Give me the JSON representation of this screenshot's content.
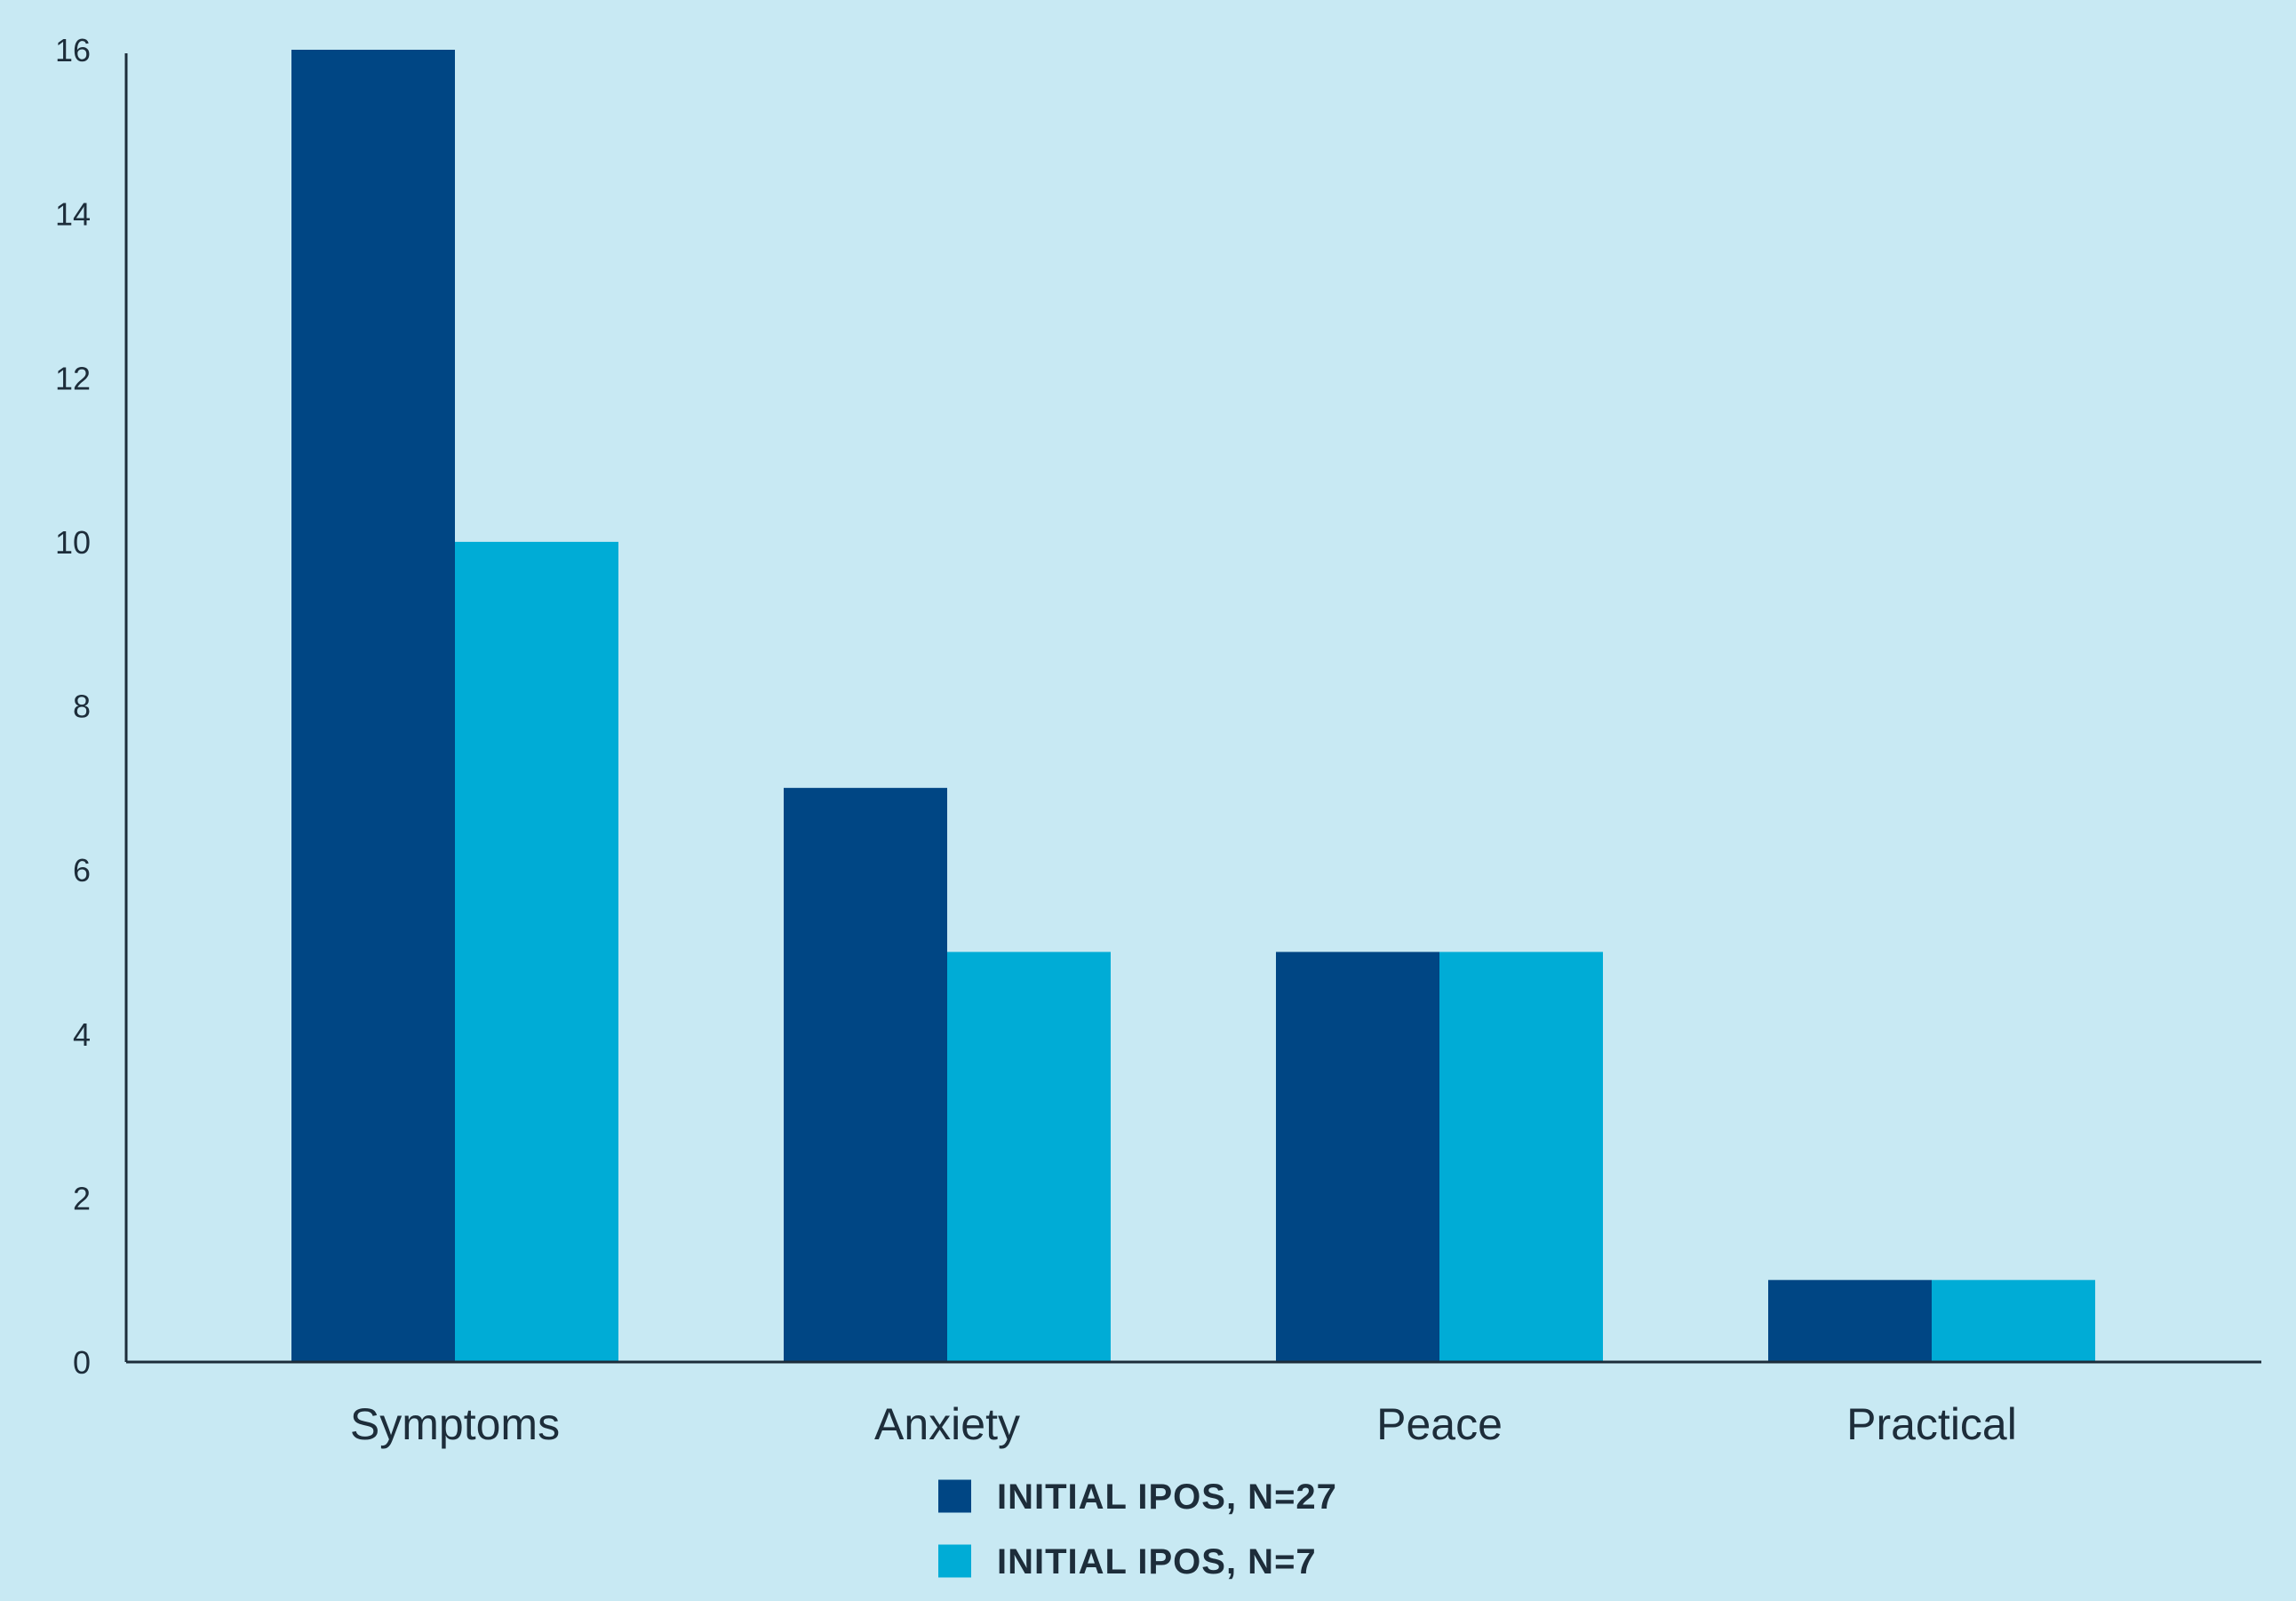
{
  "chart_data": {
    "type": "bar",
    "title": "",
    "xlabel": "",
    "ylabel": "",
    "categories": [
      "Symptoms",
      "Anxiety",
      "Peace",
      "Practical"
    ],
    "series": [
      {
        "name": "INITIAL IPOS, N=27",
        "values": [
          16,
          7,
          5,
          1
        ],
        "color": "#004684"
      },
      {
        "name": "INITIAL IPOS, N=7",
        "values": [
          10,
          5,
          5,
          1
        ],
        "color": "#00acd6"
      }
    ],
    "ylim": [
      0,
      16
    ],
    "yticks": [
      "0",
      "2",
      "4",
      "6",
      "8",
      "10",
      "12",
      "14",
      "16"
    ],
    "grid": false,
    "legend_position": "bottom-center",
    "colors": {
      "background": "#c8e9f3",
      "axis": "#1d2d3a"
    }
  }
}
